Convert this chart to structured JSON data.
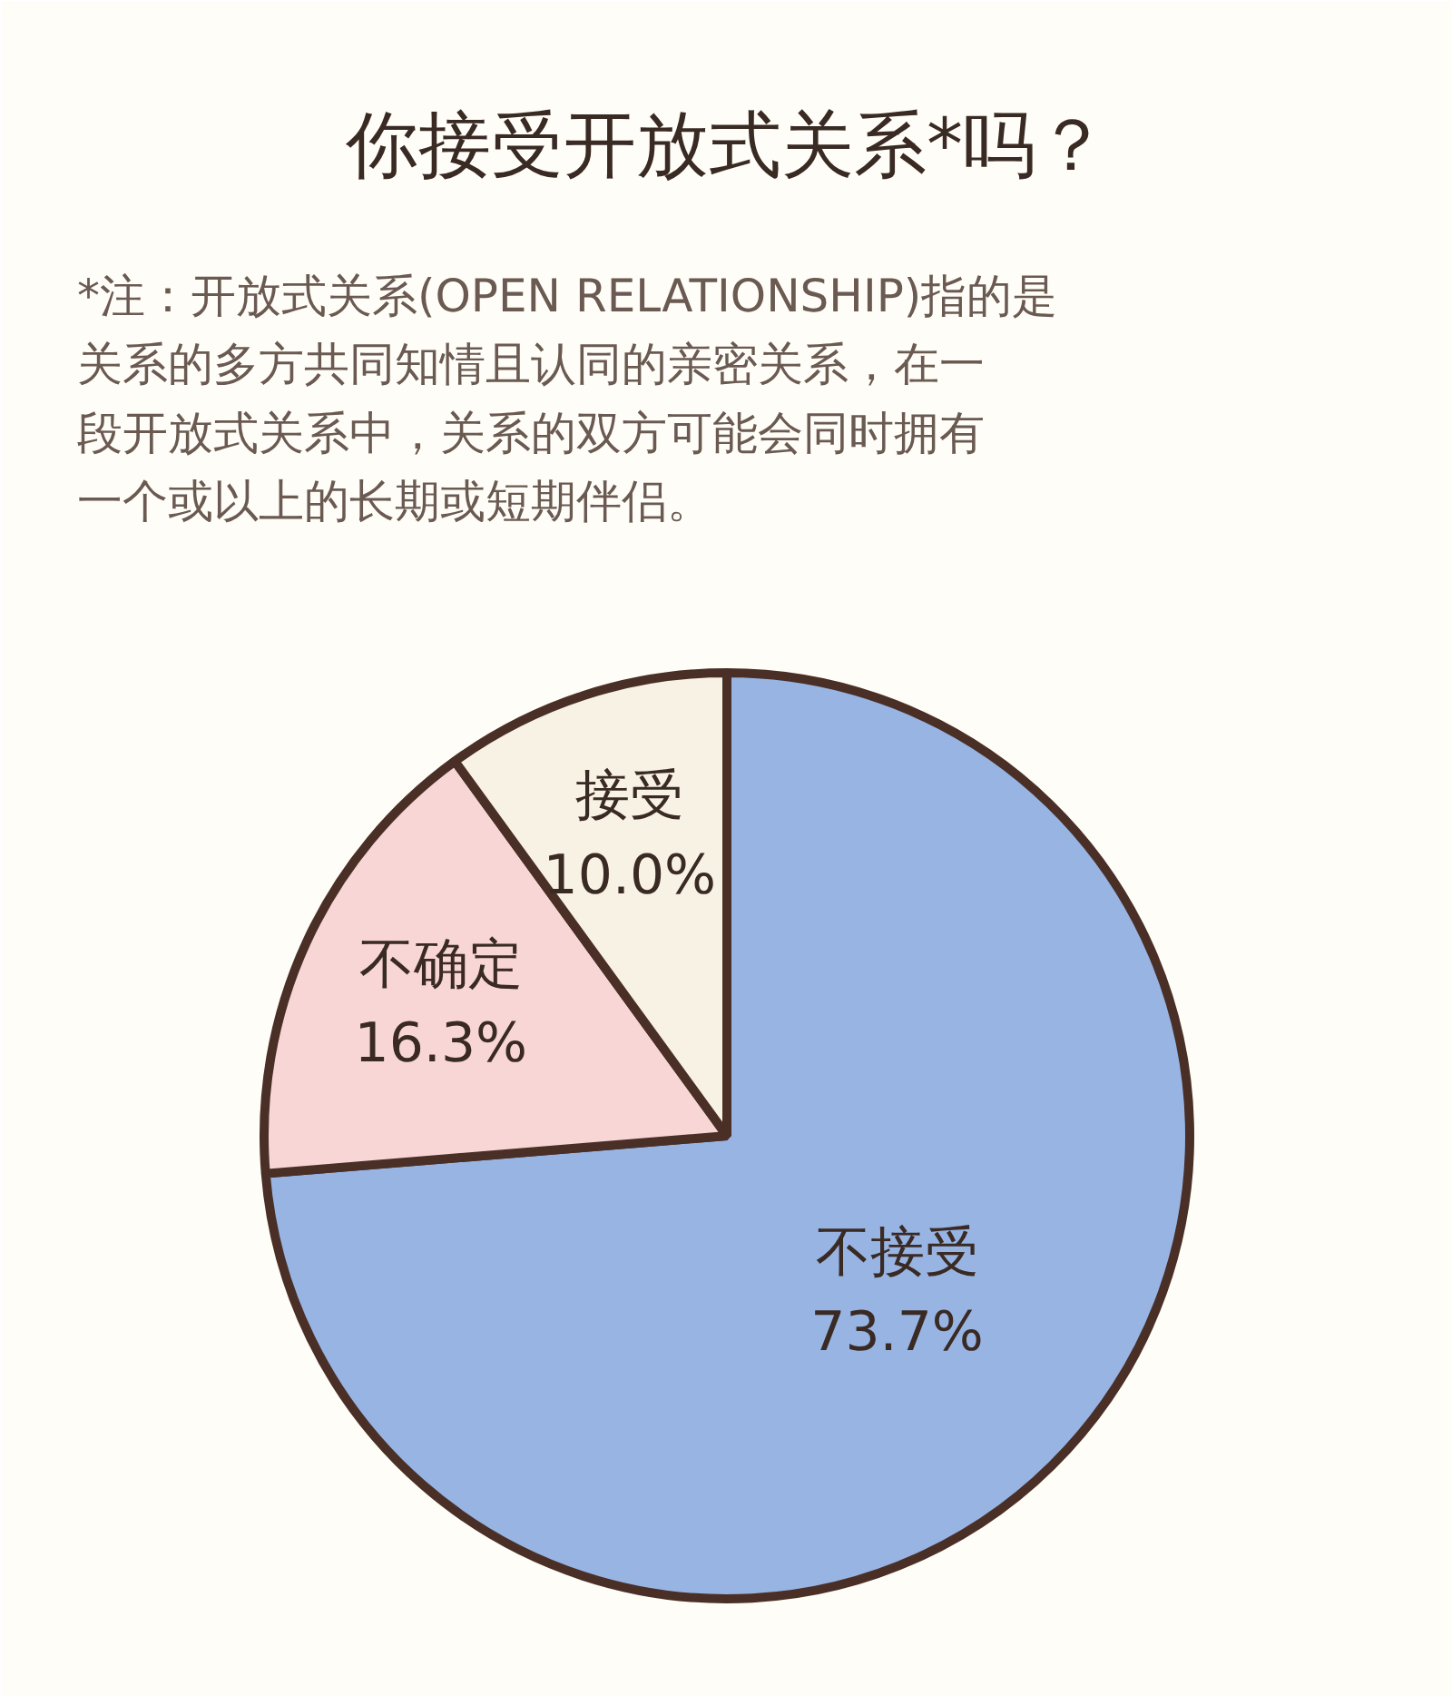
{
  "chart_data": {
    "type": "pie",
    "title": "你接受开放式关系*吗？",
    "subtitle": "*注：开放式关系(OPEN RELATIONSHIP)指的是关系的多方共同知情且认同的亲密关系，在一段开放式关系中，关系的双方可能会同时拥有一个或以上的长期或短期伴侣。",
    "categories": [
      "不接受",
      "不确定",
      "接受"
    ],
    "values": [
      73.7,
      16.3,
      10.0
    ],
    "value_labels": [
      "73.7%",
      "16.3%",
      "10.0%"
    ],
    "colors": [
      "#97b4e3",
      "#f8d6d6",
      "#f8f2e4"
    ]
  }
}
